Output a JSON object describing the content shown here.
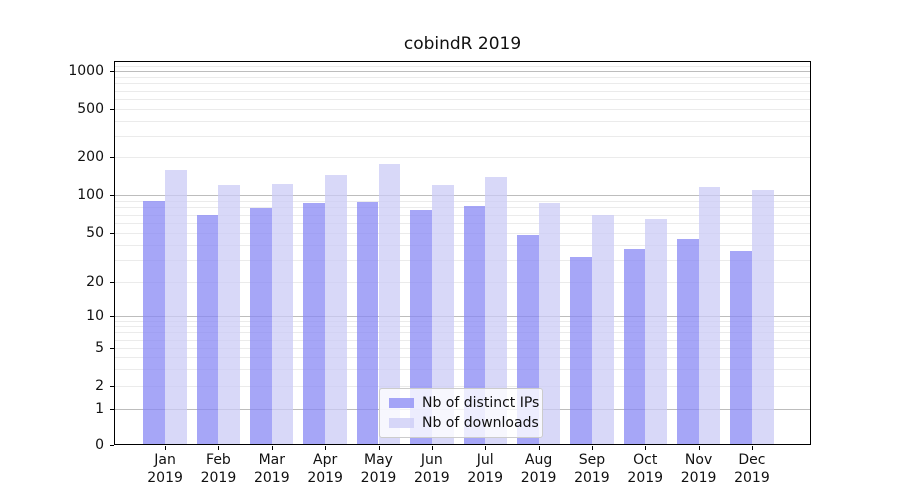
{
  "title": "cobindR 2019",
  "year": "2019",
  "colors": {
    "ips_bar": "rgba(136,136,244,0.75)",
    "downloads_bar": "rgba(203,203,246,0.75)",
    "major_grid": "#bdbdbd",
    "minor_grid": "#ebebeb",
    "axis": "#000000"
  },
  "legend": {
    "items": [
      {
        "label": "Nb of distinct IPs",
        "series": "ips"
      },
      {
        "label": "Nb of downloads",
        "series": "downloads"
      }
    ]
  },
  "chart_data": {
    "type": "bar",
    "title": "cobindR 2019",
    "categories": [
      "Jan",
      "Feb",
      "Mar",
      "Apr",
      "May",
      "Jun",
      "Jul",
      "Aug",
      "Sep",
      "Oct",
      "Nov",
      "Dec"
    ],
    "category_year": "2019",
    "series": [
      {
        "name": "Nb of distinct IPs",
        "values": [
          90,
          70,
          79,
          86,
          88,
          76,
          82,
          48,
          32,
          37,
          45,
          36
        ]
      },
      {
        "name": "Nb of downloads",
        "values": [
          157,
          119,
          122,
          145,
          176,
          120,
          140,
          87,
          70,
          65,
          115,
          109
        ]
      }
    ],
    "xlabel": "",
    "ylabel": "",
    "yscale": "symlog-like",
    "yticks": [
      0,
      1,
      2,
      5,
      10,
      20,
      50,
      100,
      200,
      500,
      1000
    ],
    "ylim": [
      0,
      1200
    ],
    "grid": "both",
    "legend_position": "lower center"
  }
}
